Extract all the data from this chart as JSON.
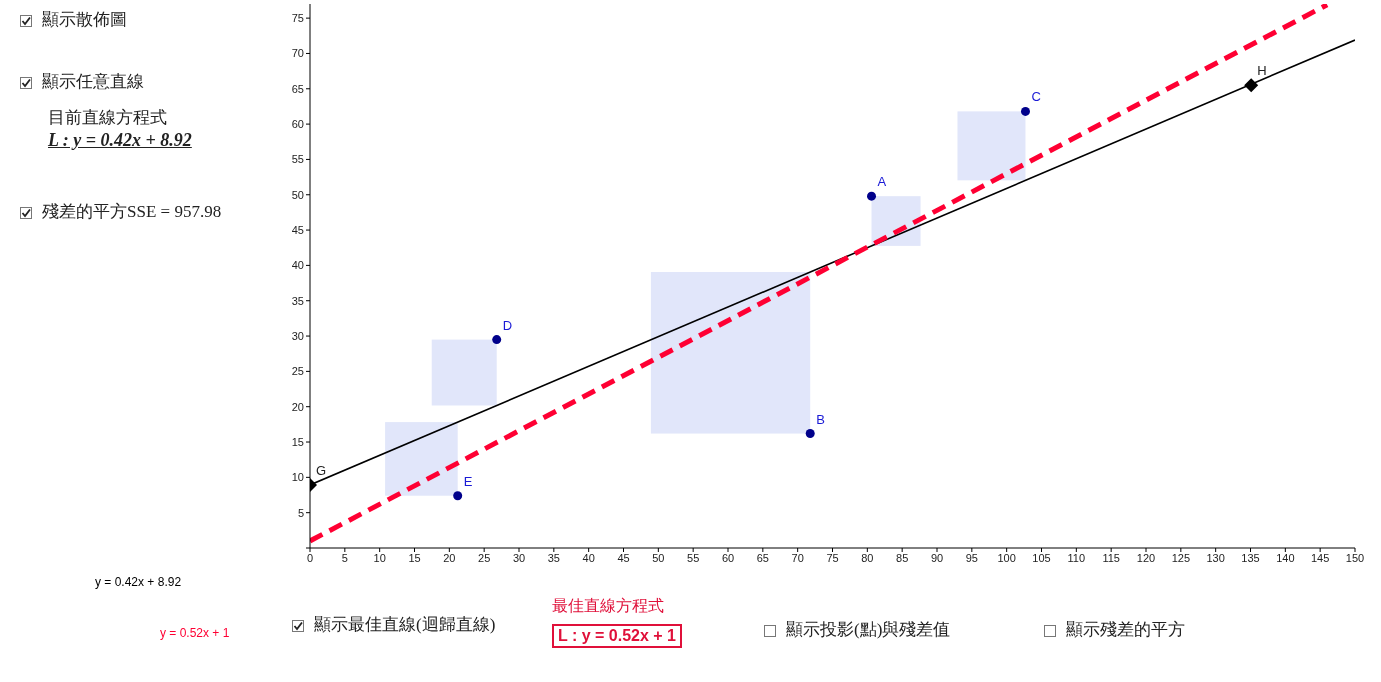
{
  "chart_data": {
    "type": "scatter",
    "xlim": [
      0,
      150
    ],
    "xticks": [
      0,
      5,
      10,
      15,
      20,
      25,
      30,
      35,
      40,
      45,
      50,
      55,
      60,
      65,
      70,
      75,
      80,
      85,
      90,
      95,
      100,
      105,
      110,
      115,
      120,
      125,
      130,
      135,
      140,
      145,
      150
    ],
    "ylim": [
      0,
      77
    ],
    "yticks": [
      {
        "value": 0,
        "label": null
      },
      5,
      10,
      15,
      20,
      25,
      30,
      35,
      40,
      45,
      50,
      55,
      60,
      65,
      70,
      75
    ],
    "series": [
      {
        "name": "y = 0.42x + 8.92",
        "type": "line",
        "color": "#000000",
        "line_style": "solid",
        "marker": "none",
        "x": [
          0,
          150
        ],
        "values": [
          8.92,
          71.9
        ]
      },
      {
        "name": "y = 0.52x + 1",
        "type": "line",
        "color": "#ff0033",
        "line_style": "dashed",
        "marker": "none",
        "x": [
          0,
          146
        ],
        "values": [
          1,
          76.9
        ]
      },
      {
        "color": "#00008b",
        "marker": "circle",
        "x": [
          80.6,
          71.8,
          102.7,
          26.8,
          21.2
        ],
        "values": [
          49.8,
          16.2,
          61.8,
          29.5,
          7.4
        ]
      },
      {
        "color": "#000000",
        "marker": "diamond",
        "x": [
          0,
          135.1
        ],
        "values": [
          8.92,
          65.5
        ]
      }
    ],
    "annotations": [
      "顯示散佈圖",
      "顯示任意直線",
      "目前直線方程式",
      "L : y = 0.42x + 8.92",
      "殘差的平方SSE = 957.98",
      "顯示最佳直線(迴歸直線)",
      "最佳直線方程式",
      "L : y = 0.52x + 1",
      "顯示投影(點)與殘差值",
      "顯示殘差的平方",
      {
        "text": "A",
        "x": 80.6,
        "y": 49.8
      },
      {
        "text": "B",
        "x": 71.8,
        "y": 16.2
      },
      {
        "text": "C",
        "x": 102.7,
        "y": 61.8
      },
      {
        "text": "D",
        "x": 26.8,
        "y": 29.5
      },
      {
        "text": "E",
        "x": 21.2,
        "y": 7.4
      },
      {
        "text": "G",
        "x": 0,
        "y": 8.92
      },
      {
        "text": "H",
        "x": 135.1,
        "y": 65.5
      }
    ]
  }
}
